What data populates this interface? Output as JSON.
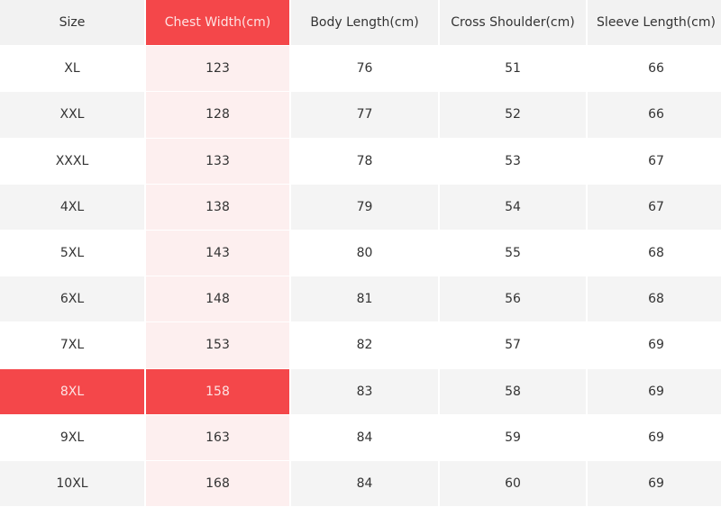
{
  "colors": {
    "highlight": "#f4474a",
    "highlight_column_tint": "#fdefef",
    "stripe": "#f4f4f4",
    "header": "#f2f2f2"
  },
  "table": {
    "headers": [
      "Size",
      "Chest Width(cm)",
      "Body Length(cm)",
      "Cross Shoulder(cm)",
      "Sleeve Length(cm)"
    ],
    "highlighted_column": 1,
    "highlighted_row": "8XL",
    "rows": [
      [
        "XL",
        "123",
        "76",
        "51",
        "66"
      ],
      [
        "XXL",
        "128",
        "77",
        "52",
        "66"
      ],
      [
        "XXXL",
        "133",
        "78",
        "53",
        "67"
      ],
      [
        "4XL",
        "138",
        "79",
        "54",
        "67"
      ],
      [
        "5XL",
        "143",
        "80",
        "55",
        "68"
      ],
      [
        "6XL",
        "148",
        "81",
        "56",
        "68"
      ],
      [
        "7XL",
        "153",
        "82",
        "57",
        "69"
      ],
      [
        "8XL",
        "158",
        "83",
        "58",
        "69"
      ],
      [
        "9XL",
        "163",
        "84",
        "59",
        "69"
      ],
      [
        "10XL",
        "168",
        "84",
        "60",
        "69"
      ]
    ]
  }
}
